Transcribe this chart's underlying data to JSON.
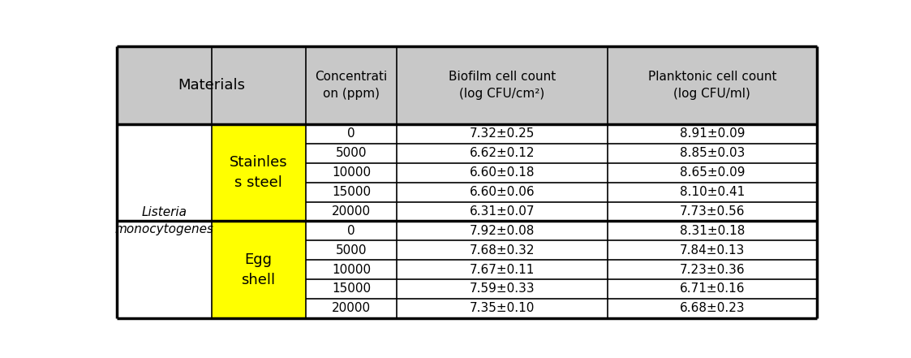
{
  "header_bg": "#c8c8c8",
  "yellow_bg": "#ffff00",
  "white_bg": "#ffffff",
  "bacteria_label": "Listeria\nmonocytogenes",
  "material1": "Stainles\ns steel",
  "material2": "Egg\nshell",
  "concentrations": [
    "0",
    "5000",
    "10000",
    "15000",
    "20000"
  ],
  "biofilm_steel": [
    "7.32±0.25",
    "6.62±0.12",
    "6.60±0.18",
    "6.60±0.06",
    "6.31±0.07"
  ],
  "planktonic_steel": [
    "8.91±0.09",
    "8.85±0.03",
    "8.65±0.09",
    "8.10±0.41",
    "7.73±0.56"
  ],
  "biofilm_egg": [
    "7.92±0.08",
    "7.68±0.32",
    "7.67±0.11",
    "7.59±0.33",
    "7.35±0.10"
  ],
  "planktonic_egg": [
    "8.31±0.18",
    "7.84±0.13",
    "7.23±0.36",
    "6.71±0.16",
    "6.68±0.23"
  ],
  "header_text_conc": "Concentrati\non (ppm)",
  "header_text_biofilm": "Biofilm cell count\n(log CFU/cm²)",
  "header_text_planktonic": "Planktonic cell count\n(log CFU/ml)",
  "header_text_materials": "Materials",
  "fig_width": 11.23,
  "fig_height": 4.41,
  "border_color": "#000000"
}
